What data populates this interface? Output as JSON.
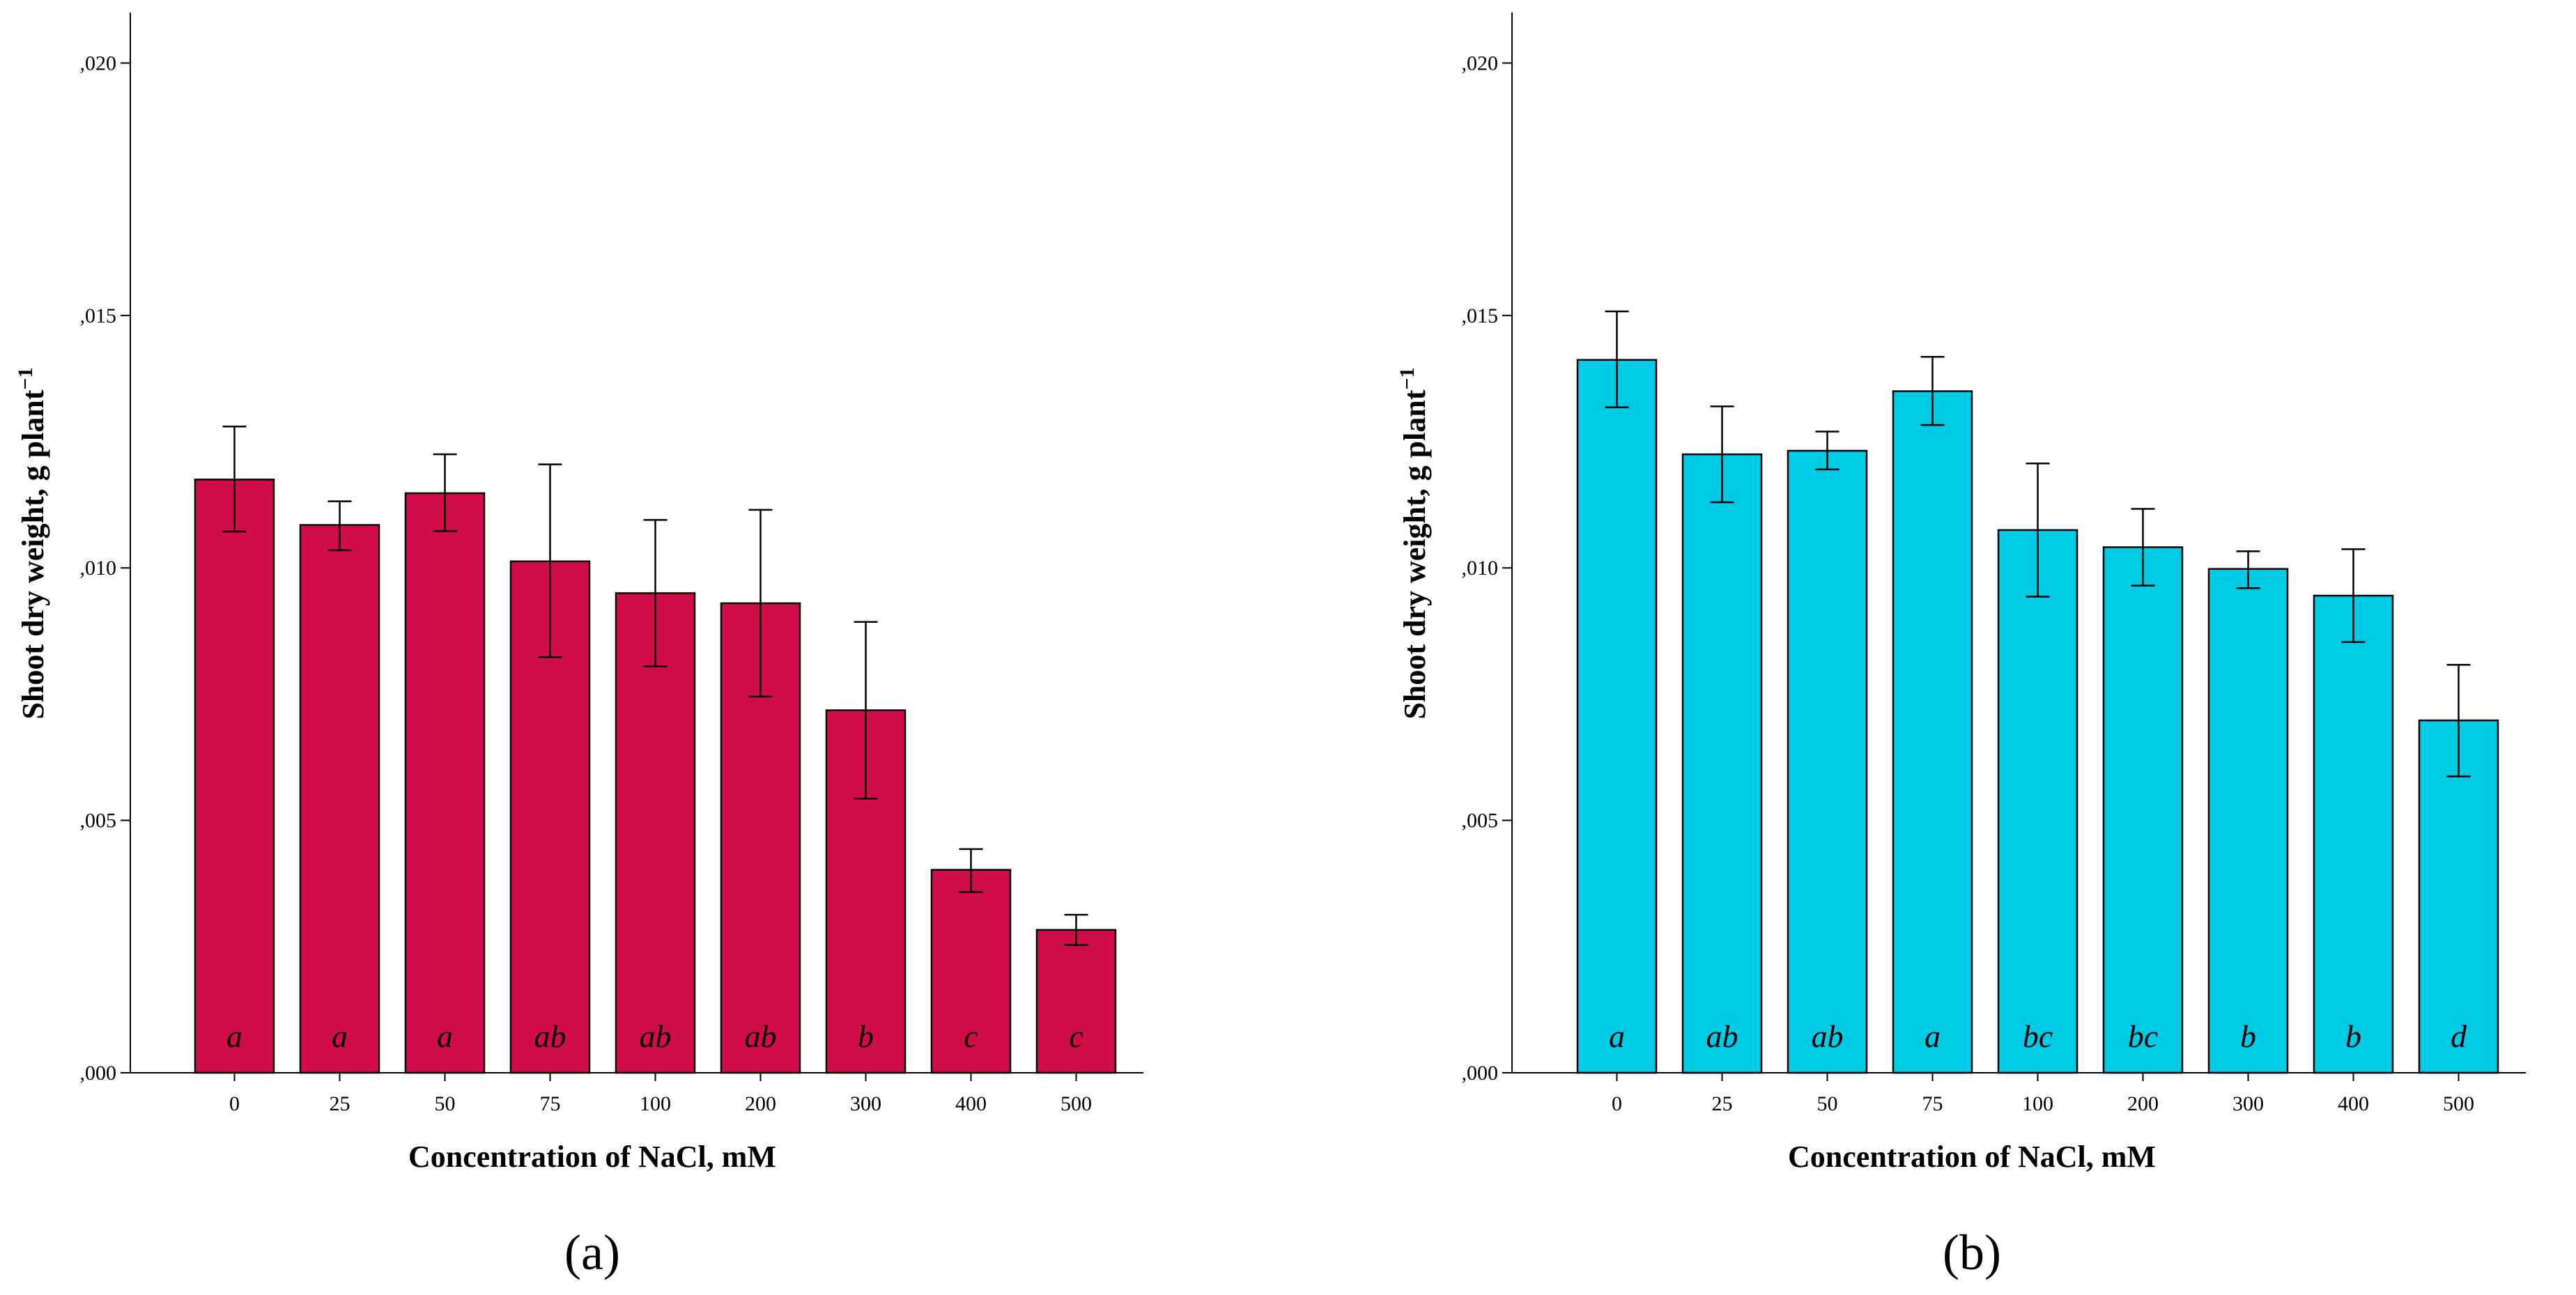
{
  "chart_data": [
    {
      "type": "bar",
      "panel_label": "(a)",
      "title": "",
      "xlabel": "Concentration of NaCl, mM",
      "ylabel": "Shoot dry weight, g plant",
      "ylabel_superscript": "−1",
      "ylim": [
        0,
        0.021
      ],
      "yticks": [
        ",000",
        ",005",
        ",010",
        ",015",
        ",020"
      ],
      "categories": [
        "0",
        "25",
        "50",
        "75",
        "100",
        "200",
        "300",
        "400",
        "500"
      ],
      "values": [
        0.01175,
        0.01085,
        0.01148,
        0.01013,
        0.0095,
        0.0093,
        0.00718,
        0.00402,
        0.00283
      ],
      "error_low": [
        0.01072,
        0.01035,
        0.01073,
        0.00823,
        0.00805,
        0.00745,
        0.00543,
        0.00358,
        0.00253
      ],
      "error_high": [
        0.0128,
        0.01132,
        0.01225,
        0.01205,
        0.01095,
        0.01115,
        0.00893,
        0.00443,
        0.00313
      ],
      "letters": [
        "a",
        "a",
        "a",
        "ab",
        "ab",
        "ab",
        "b",
        "c",
        "c"
      ],
      "bar_color": "#d00c4a"
    },
    {
      "type": "bar",
      "panel_label": "(b)",
      "title": "",
      "xlabel": "Concentration of NaCl, mM",
      "ylabel": "Shoot dry weight, g plant",
      "ylabel_superscript": "−1",
      "ylim": [
        0,
        0.021
      ],
      "yticks": [
        ",000",
        ",005",
        ",010",
        ",015",
        ",020"
      ],
      "categories": [
        "0",
        "25",
        "50",
        "75",
        "100",
        "200",
        "300",
        "400",
        "500"
      ],
      "values": [
        0.01412,
        0.01225,
        0.01232,
        0.0135,
        0.01075,
        0.01041,
        0.00998,
        0.00945,
        0.00698
      ],
      "error_low": [
        0.01318,
        0.0113,
        0.01195,
        0.01283,
        0.00943,
        0.00965,
        0.0096,
        0.00853,
        0.00587
      ],
      "error_high": [
        0.01508,
        0.0132,
        0.0127,
        0.01418,
        0.01207,
        0.01117,
        0.01033,
        0.01037,
        0.00808
      ],
      "letters": [
        "a",
        "ab",
        "ab",
        "a",
        "bc",
        "bc",
        "b",
        "b",
        "d"
      ],
      "bar_color": "#00cbe6"
    }
  ]
}
